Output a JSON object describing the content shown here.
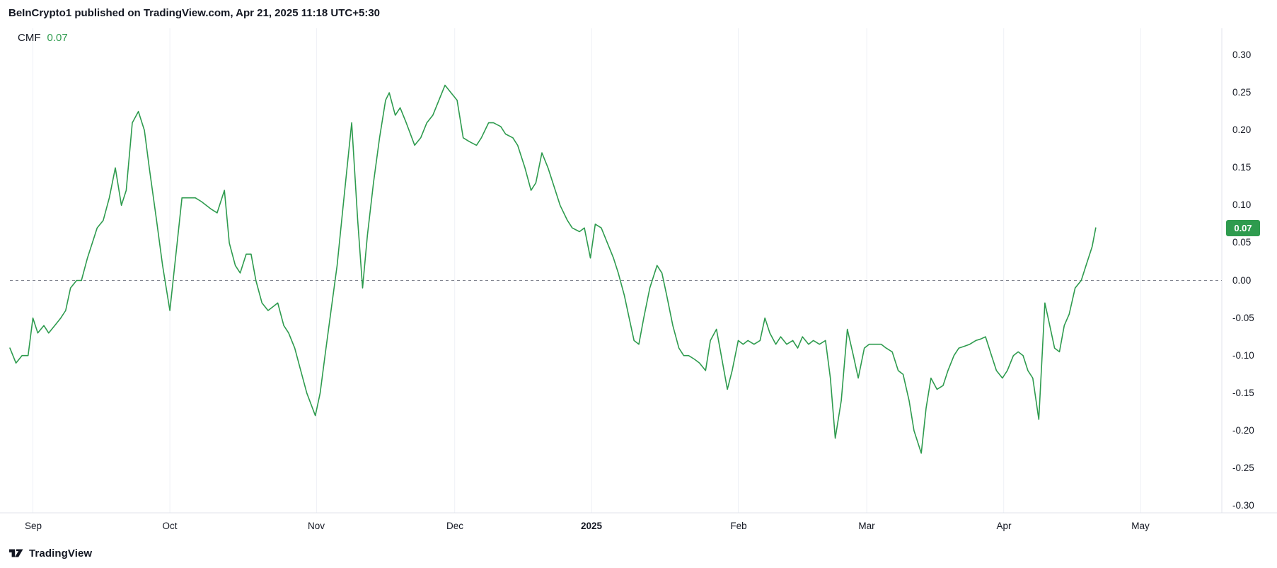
{
  "header": {
    "title": "BeInCrypto1 published on TradingView.com, Apr 21, 2025 11:18 UTC+5:30"
  },
  "legend": {
    "indicator": "CMF",
    "value": "0.07"
  },
  "badge": {
    "value": "0.07"
  },
  "footer": {
    "brand": "TradingView"
  },
  "colors": {
    "line": "#2e9b4e",
    "legend_value": "#2e9b4e",
    "badge_bg": "#2e9b4e",
    "grid": "#eef1f6",
    "axis_border": "#e0e3eb",
    "zero_line": "#80838e",
    "text": "#131722"
  },
  "chart_data": {
    "type": "line",
    "title": "CMF (Chaikin Money Flow)",
    "xlabel": "",
    "ylabel": "",
    "ylim": [
      -0.3,
      0.3
    ],
    "y_tick_step": 0.05,
    "grid": "vertical-light",
    "zero_line": {
      "value": 0.0,
      "style": "dashed"
    },
    "current_value": 0.07,
    "y_ticks": [
      "0.30",
      "0.25",
      "0.20",
      "0.15",
      "0.10",
      "0.05",
      "0.00",
      "-0.05",
      "-0.10",
      "-0.15",
      "-0.20",
      "-0.25",
      "-0.30"
    ],
    "x_ticks": [
      {
        "label": "Sep",
        "f": 0.019,
        "bold": false
      },
      {
        "label": "Oct",
        "f": 0.132,
        "bold": false
      },
      {
        "label": "Nov",
        "f": 0.253,
        "bold": false
      },
      {
        "label": "Dec",
        "f": 0.367,
        "bold": false
      },
      {
        "label": "2025",
        "f": 0.48,
        "bold": true
      },
      {
        "label": "Feb",
        "f": 0.601,
        "bold": false
      },
      {
        "label": "Mar",
        "f": 0.707,
        "bold": false
      },
      {
        "label": "Apr",
        "f": 0.82,
        "bold": false
      },
      {
        "label": "May",
        "f": 0.933,
        "bold": false
      }
    ],
    "points": [
      [
        0.0,
        -0.09
      ],
      [
        0.005,
        -0.11
      ],
      [
        0.01,
        -0.1
      ],
      [
        0.015,
        -0.1
      ],
      [
        0.019,
        -0.05
      ],
      [
        0.023,
        -0.07
      ],
      [
        0.028,
        -0.06
      ],
      [
        0.032,
        -0.07
      ],
      [
        0.037,
        -0.06
      ],
      [
        0.042,
        -0.05
      ],
      [
        0.046,
        -0.04
      ],
      [
        0.05,
        -0.01
      ],
      [
        0.055,
        0.0
      ],
      [
        0.059,
        0.0
      ],
      [
        0.064,
        0.03
      ],
      [
        0.068,
        0.05
      ],
      [
        0.072,
        0.07
      ],
      [
        0.077,
        0.08
      ],
      [
        0.082,
        0.11
      ],
      [
        0.087,
        0.15
      ],
      [
        0.092,
        0.1
      ],
      [
        0.096,
        0.12
      ],
      [
        0.101,
        0.21
      ],
      [
        0.106,
        0.225
      ],
      [
        0.111,
        0.2
      ],
      [
        0.115,
        0.15
      ],
      [
        0.121,
        0.08
      ],
      [
        0.126,
        0.02
      ],
      [
        0.132,
        -0.04
      ],
      [
        0.138,
        0.05
      ],
      [
        0.142,
        0.11
      ],
      [
        0.148,
        0.11
      ],
      [
        0.153,
        0.11
      ],
      [
        0.158,
        0.105
      ],
      [
        0.162,
        0.1
      ],
      [
        0.166,
        0.095
      ],
      [
        0.171,
        0.09
      ],
      [
        0.177,
        0.12
      ],
      [
        0.181,
        0.05
      ],
      [
        0.186,
        0.02
      ],
      [
        0.19,
        0.01
      ],
      [
        0.195,
        0.035
      ],
      [
        0.199,
        0.035
      ],
      [
        0.203,
        0.0
      ],
      [
        0.208,
        -0.03
      ],
      [
        0.213,
        -0.04
      ],
      [
        0.217,
        -0.035
      ],
      [
        0.221,
        -0.03
      ],
      [
        0.226,
        -0.06
      ],
      [
        0.23,
        -0.07
      ],
      [
        0.235,
        -0.09
      ],
      [
        0.24,
        -0.12
      ],
      [
        0.245,
        -0.15
      ],
      [
        0.252,
        -0.18
      ],
      [
        0.256,
        -0.15
      ],
      [
        0.26,
        -0.1
      ],
      [
        0.265,
        -0.04
      ],
      [
        0.27,
        0.02
      ],
      [
        0.275,
        0.1
      ],
      [
        0.282,
        0.21
      ],
      [
        0.287,
        0.08
      ],
      [
        0.291,
        -0.01
      ],
      [
        0.295,
        0.06
      ],
      [
        0.3,
        0.13
      ],
      [
        0.305,
        0.19
      ],
      [
        0.31,
        0.24
      ],
      [
        0.313,
        0.25
      ],
      [
        0.318,
        0.22
      ],
      [
        0.322,
        0.23
      ],
      [
        0.327,
        0.21
      ],
      [
        0.334,
        0.18
      ],
      [
        0.339,
        0.19
      ],
      [
        0.344,
        0.21
      ],
      [
        0.349,
        0.22
      ],
      [
        0.354,
        0.24
      ],
      [
        0.359,
        0.26
      ],
      [
        0.364,
        0.25
      ],
      [
        0.369,
        0.24
      ],
      [
        0.374,
        0.19
      ],
      [
        0.379,
        0.185
      ],
      [
        0.385,
        0.18
      ],
      [
        0.389,
        0.19
      ],
      [
        0.395,
        0.21
      ],
      [
        0.399,
        0.21
      ],
      [
        0.405,
        0.205
      ],
      [
        0.409,
        0.195
      ],
      [
        0.415,
        0.19
      ],
      [
        0.419,
        0.18
      ],
      [
        0.425,
        0.15
      ],
      [
        0.43,
        0.12
      ],
      [
        0.434,
        0.13
      ],
      [
        0.439,
        0.17
      ],
      [
        0.444,
        0.15
      ],
      [
        0.45,
        0.12
      ],
      [
        0.454,
        0.1
      ],
      [
        0.46,
        0.08
      ],
      [
        0.464,
        0.07
      ],
      [
        0.47,
        0.065
      ],
      [
        0.474,
        0.07
      ],
      [
        0.479,
        0.03
      ],
      [
        0.483,
        0.075
      ],
      [
        0.488,
        0.07
      ],
      [
        0.493,
        0.05
      ],
      [
        0.498,
        0.03
      ],
      [
        0.502,
        0.01
      ],
      [
        0.507,
        -0.02
      ],
      [
        0.511,
        -0.05
      ],
      [
        0.515,
        -0.08
      ],
      [
        0.519,
        -0.085
      ],
      [
        0.523,
        -0.05
      ],
      [
        0.528,
        -0.01
      ],
      [
        0.534,
        0.02
      ],
      [
        0.538,
        0.01
      ],
      [
        0.542,
        -0.02
      ],
      [
        0.547,
        -0.06
      ],
      [
        0.552,
        -0.09
      ],
      [
        0.556,
        -0.1
      ],
      [
        0.56,
        -0.1
      ],
      [
        0.565,
        -0.105
      ],
      [
        0.569,
        -0.11
      ],
      [
        0.574,
        -0.12
      ],
      [
        0.578,
        -0.08
      ],
      [
        0.583,
        -0.065
      ],
      [
        0.587,
        -0.1
      ],
      [
        0.592,
        -0.145
      ],
      [
        0.596,
        -0.12
      ],
      [
        0.601,
        -0.08
      ],
      [
        0.605,
        -0.085
      ],
      [
        0.609,
        -0.08
      ],
      [
        0.614,
        -0.085
      ],
      [
        0.619,
        -0.08
      ],
      [
        0.623,
        -0.05
      ],
      [
        0.627,
        -0.07
      ],
      [
        0.632,
        -0.085
      ],
      [
        0.636,
        -0.075
      ],
      [
        0.641,
        -0.085
      ],
      [
        0.646,
        -0.08
      ],
      [
        0.65,
        -0.09
      ],
      [
        0.654,
        -0.075
      ],
      [
        0.659,
        -0.085
      ],
      [
        0.663,
        -0.08
      ],
      [
        0.668,
        -0.085
      ],
      [
        0.673,
        -0.08
      ],
      [
        0.677,
        -0.13
      ],
      [
        0.681,
        -0.21
      ],
      [
        0.686,
        -0.16
      ],
      [
        0.691,
        -0.065
      ],
      [
        0.696,
        -0.1
      ],
      [
        0.7,
        -0.13
      ],
      [
        0.705,
        -0.09
      ],
      [
        0.709,
        -0.085
      ],
      [
        0.715,
        -0.085
      ],
      [
        0.719,
        -0.085
      ],
      [
        0.723,
        -0.09
      ],
      [
        0.728,
        -0.095
      ],
      [
        0.733,
        -0.12
      ],
      [
        0.737,
        -0.125
      ],
      [
        0.742,
        -0.16
      ],
      [
        0.746,
        -0.2
      ],
      [
        0.752,
        -0.23
      ],
      [
        0.756,
        -0.17
      ],
      [
        0.76,
        -0.13
      ],
      [
        0.765,
        -0.145
      ],
      [
        0.77,
        -0.14
      ],
      [
        0.774,
        -0.12
      ],
      [
        0.779,
        -0.1
      ],
      [
        0.783,
        -0.09
      ],
      [
        0.787,
        -0.088
      ],
      [
        0.792,
        -0.085
      ],
      [
        0.797,
        -0.08
      ],
      [
        0.801,
        -0.078
      ],
      [
        0.805,
        -0.075
      ],
      [
        0.81,
        -0.1
      ],
      [
        0.814,
        -0.12
      ],
      [
        0.819,
        -0.13
      ],
      [
        0.823,
        -0.12
      ],
      [
        0.828,
        -0.1
      ],
      [
        0.832,
        -0.095
      ],
      [
        0.836,
        -0.1
      ],
      [
        0.84,
        -0.12
      ],
      [
        0.844,
        -0.13
      ],
      [
        0.849,
        -0.185
      ],
      [
        0.854,
        -0.03
      ],
      [
        0.858,
        -0.06
      ],
      [
        0.862,
        -0.09
      ],
      [
        0.866,
        -0.095
      ],
      [
        0.87,
        -0.06
      ],
      [
        0.874,
        -0.045
      ],
      [
        0.879,
        -0.01
      ],
      [
        0.884,
        0.0
      ],
      [
        0.888,
        0.02
      ],
      [
        0.893,
        0.045
      ],
      [
        0.896,
        0.07
      ]
    ]
  }
}
